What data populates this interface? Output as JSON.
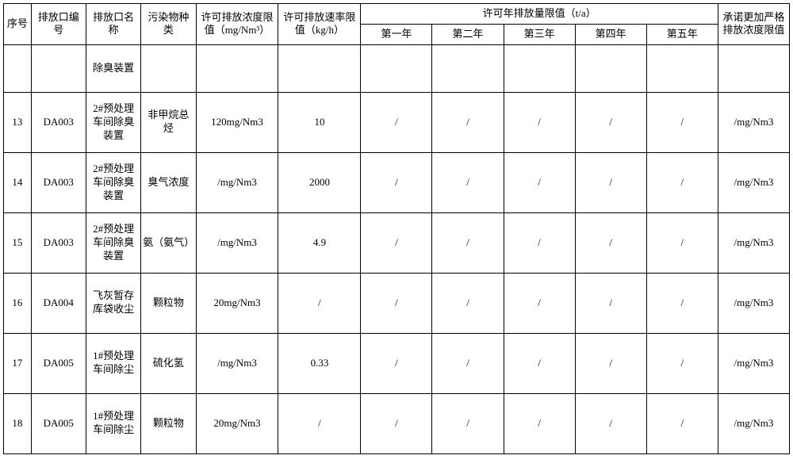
{
  "header": {
    "seq": "序号",
    "code": "排放口编号",
    "name": "排放口名称",
    "pollutant": "污染物种类",
    "conc_limit": "许可排放浓度限值（mg/Nm³）",
    "rate_limit": "许可排放速率限值（kg/h）",
    "annual_limit": "许可年排放量限值（t/a）",
    "year1": "第一年",
    "year2": "第二年",
    "year3": "第三年",
    "year4": "第四年",
    "year5": "第五年",
    "promise": "承诺更加严格排放浓度限值"
  },
  "first_row": {
    "seq": "",
    "code": "",
    "name": "除臭装置",
    "pollutant": "",
    "conc": "",
    "rate": "",
    "y1": "",
    "y2": "",
    "y3": "",
    "y4": "",
    "y5": "",
    "promise": ""
  },
  "rows": [
    {
      "seq": "13",
      "code": "DA003",
      "name": "2#预处理车间除臭装置",
      "pollutant": "非甲烷总烃",
      "conc": "120mg/Nm3",
      "rate": "10",
      "y1": "/",
      "y2": "/",
      "y3": "/",
      "y4": "/",
      "y5": "/",
      "promise": "/mg/Nm3"
    },
    {
      "seq": "14",
      "code": "DA003",
      "name": "2#预处理车间除臭装置",
      "pollutant": "臭气浓度",
      "conc": "/mg/Nm3",
      "rate": "2000",
      "y1": "/",
      "y2": "/",
      "y3": "/",
      "y4": "/",
      "y5": "/",
      "promise": "/mg/Nm3"
    },
    {
      "seq": "15",
      "code": "DA003",
      "name": "2#预处理车间除臭装置",
      "pollutant": "氨（氨气）",
      "conc": "/mg/Nm3",
      "rate": "4.9",
      "y1": "/",
      "y2": "/",
      "y3": "/",
      "y4": "/",
      "y5": "/",
      "promise": "/mg/Nm3"
    },
    {
      "seq": "16",
      "code": "DA004",
      "name": "飞灰暂存库袋收尘",
      "pollutant": "颗粒物",
      "conc": "20mg/Nm3",
      "rate": "/",
      "y1": "/",
      "y2": "/",
      "y3": "/",
      "y4": "/",
      "y5": "/",
      "promise": "/mg/Nm3"
    },
    {
      "seq": "17",
      "code": "DA005",
      "name": "1#预处理车间除尘",
      "pollutant": "硫化氢",
      "conc": "/mg/Nm3",
      "rate": "0.33",
      "y1": "/",
      "y2": "/",
      "y3": "/",
      "y4": "/",
      "y5": "/",
      "promise": "/mg/Nm3"
    },
    {
      "seq": "18",
      "code": "DA005",
      "name": "1#预处理车间除尘",
      "pollutant": "颗粒物",
      "conc": "20mg/Nm3",
      "rate": "/",
      "y1": "/",
      "y2": "/",
      "y3": "/",
      "y4": "/",
      "y5": "/",
      "promise": "/mg/Nm3"
    }
  ],
  "style": {
    "font_family": "SimSun",
    "font_size_header": 13,
    "font_size_cell": 13,
    "border_color": "#000000",
    "background_color": "#ffffff",
    "text_color": "#000000"
  }
}
